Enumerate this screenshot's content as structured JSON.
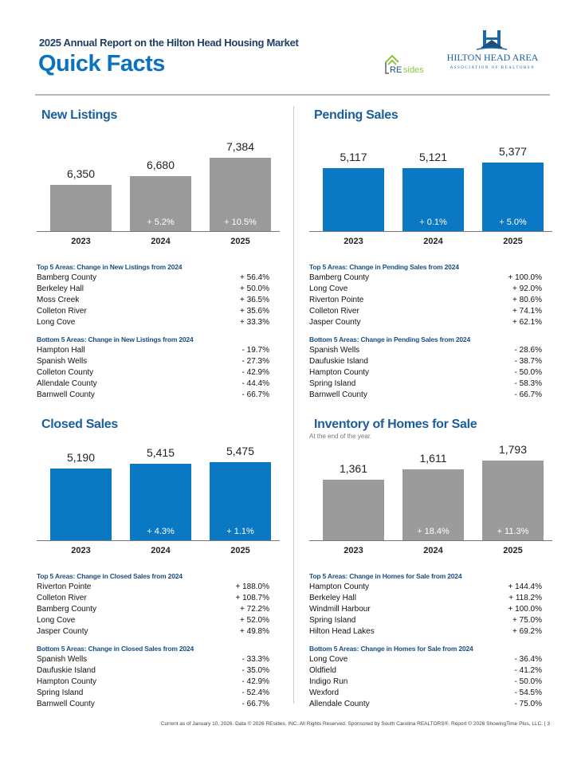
{
  "header": {
    "subtitle": "2025 Annual Report on the Hilton Head Housing Market",
    "title": "Quick Facts",
    "logos": {
      "resides": "REsides",
      "association_line1": "Hilton Head Area",
      "association_line2": "Association of Realtors®"
    }
  },
  "colors": {
    "gray_bar": "#9b9b9b",
    "blue_bar": "#0a78c2",
    "title_blue": "#0a72bf",
    "heading_blue": "#1c4f80"
  },
  "panels": [
    {
      "title": "New Listings",
      "subtitle": "",
      "bar_color": "gray",
      "chart_data": {
        "type": "bar",
        "categories": [
          "2023",
          "2024",
          "2025"
        ],
        "values": [
          6350,
          6680,
          7384
        ],
        "value_labels": [
          "6,350",
          "6,680",
          "7,384"
        ],
        "change_labels": [
          "",
          "+ 5.2%",
          "+ 10.5%"
        ]
      },
      "top_heading": "Top 5 Areas: Change in New Listings from 2024",
      "top": [
        {
          "name": "Bamberg County",
          "value": "+ 56.4%"
        },
        {
          "name": "Berkeley Hall",
          "value": "+ 50.0%"
        },
        {
          "name": "Moss Creek",
          "value": "+ 36.5%"
        },
        {
          "name": "Colleton River",
          "value": "+ 35.6%"
        },
        {
          "name": "Long Cove",
          "value": "+ 33.3%"
        }
      ],
      "bottom_heading": "Bottom 5 Areas: Change in New Listings from 2024",
      "bottom": [
        {
          "name": "Hampton Hall",
          "value": "- 19.7%"
        },
        {
          "name": "Spanish Wells",
          "value": "- 27.3%"
        },
        {
          "name": "Colleton County",
          "value": "- 42.9%"
        },
        {
          "name": "Allendale County",
          "value": "- 44.4%"
        },
        {
          "name": "Barnwell County",
          "value": "- 66.7%"
        }
      ]
    },
    {
      "title": "Pending Sales",
      "subtitle": "",
      "bar_color": "blue",
      "chart_data": {
        "type": "bar",
        "categories": [
          "2023",
          "2024",
          "2025"
        ],
        "values": [
          5117,
          5121,
          5377
        ],
        "value_labels": [
          "5,117",
          "5,121",
          "5,377"
        ],
        "change_labels": [
          "",
          "+ 0.1%",
          "+ 5.0%"
        ]
      },
      "top_heading": "Top 5 Areas: Change in Pending Sales from 2024",
      "top": [
        {
          "name": "Bamberg County",
          "value": "+ 100.0%"
        },
        {
          "name": "Long Cove",
          "value": "+ 92.0%"
        },
        {
          "name": "Riverton Pointe",
          "value": "+ 80.6%"
        },
        {
          "name": "Colleton River",
          "value": "+ 74.1%"
        },
        {
          "name": "Jasper County",
          "value": "+ 62.1%"
        }
      ],
      "bottom_heading": "Bottom 5 Areas: Change in Pending Sales from 2024",
      "bottom": [
        {
          "name": "Spanish Wells",
          "value": "- 28.6%"
        },
        {
          "name": "Daufuskie Island",
          "value": "- 38.7%"
        },
        {
          "name": "Hampton County",
          "value": "- 50.0%"
        },
        {
          "name": "Spring Island",
          "value": "- 58.3%"
        },
        {
          "name": "Barnwell County",
          "value": "- 66.7%"
        }
      ]
    },
    {
      "title": "Closed Sales",
      "subtitle": "",
      "bar_color": "blue",
      "chart_data": {
        "type": "bar",
        "categories": [
          "2023",
          "2024",
          "2025"
        ],
        "values": [
          5190,
          5415,
          5475
        ],
        "value_labels": [
          "5,190",
          "5,415",
          "5,475"
        ],
        "change_labels": [
          "",
          "+ 4.3%",
          "+ 1.1%"
        ]
      },
      "top_heading": "Top 5 Areas: Change in Closed Sales from 2024",
      "top": [
        {
          "name": "Riverton Pointe",
          "value": "+ 188.0%"
        },
        {
          "name": "Colleton River",
          "value": "+ 108.7%"
        },
        {
          "name": "Bamberg County",
          "value": "+ 72.2%"
        },
        {
          "name": "Long Cove",
          "value": "+ 52.0%"
        },
        {
          "name": "Jasper County",
          "value": "+ 49.8%"
        }
      ],
      "bottom_heading": "Bottom 5 Areas: Change in Closed Sales from 2024",
      "bottom": [
        {
          "name": "Spanish Wells",
          "value": "- 33.3%"
        },
        {
          "name": "Daufuskie Island",
          "value": "- 35.0%"
        },
        {
          "name": "Hampton County",
          "value": "- 42.9%"
        },
        {
          "name": "Spring Island",
          "value": "- 52.4%"
        },
        {
          "name": "Barnwell County",
          "value": "- 66.7%"
        }
      ]
    },
    {
      "title": "Inventory of Homes for Sale",
      "subtitle": "At the end of the year.",
      "bar_color": "gray",
      "chart_data": {
        "type": "bar",
        "categories": [
          "2023",
          "2024",
          "2025"
        ],
        "values": [
          1361,
          1611,
          1793
        ],
        "value_labels": [
          "1,361",
          "1,611",
          "1,793"
        ],
        "change_labels": [
          "",
          "+ 18.4%",
          "+ 11.3%"
        ]
      },
      "top_heading": "Top 5 Areas: Change in Homes for Sale from 2024",
      "top": [
        {
          "name": "Hampton County",
          "value": "+ 144.4%"
        },
        {
          "name": "Berkeley Hall",
          "value": "+ 118.2%"
        },
        {
          "name": "Windmill Harbour",
          "value": "+ 100.0%"
        },
        {
          "name": "Spring Island",
          "value": "+ 75.0%"
        },
        {
          "name": "Hilton Head Lakes",
          "value": "+ 69.2%"
        }
      ],
      "bottom_heading": "Bottom 5 Areas: Change in Homes for Sale from 2024",
      "bottom": [
        {
          "name": "Long Cove",
          "value": "- 36.4%"
        },
        {
          "name": "Oldfield",
          "value": "- 41.2%"
        },
        {
          "name": "Indigo Run",
          "value": "- 50.0%"
        },
        {
          "name": "Wexford",
          "value": "- 54.5%"
        },
        {
          "name": "Allendale County",
          "value": "- 75.0%"
        }
      ]
    }
  ],
  "footer": "Current as of January 10, 2026. Data © 2026 REsides, INC. All Rights Reserved. Sponsored by South Carolina REALTORS®. Report © 2026 ShowingTime Plus, LLC.  |  3"
}
